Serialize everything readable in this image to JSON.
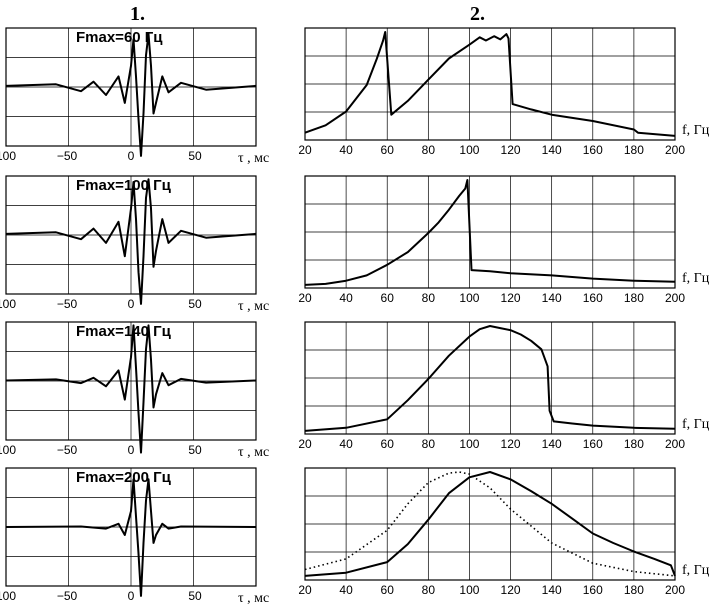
{
  "header": {
    "col1": "1.",
    "col2": "2."
  },
  "left_unit_label": "τ , мс",
  "right_unit_label": "f, Гц",
  "chart_data": [
    {
      "type": "line",
      "panel": "left",
      "title": "Fmax=60 Гц",
      "xlabel": "τ , мс",
      "xlim": [
        -100,
        100
      ],
      "xticks": [
        "100",
        "−50",
        "0",
        "50"
      ],
      "series": [
        {
          "x": [
            -100,
            -60,
            -40,
            -30,
            -20,
            -10,
            -5,
            0,
            2,
            4,
            6,
            8,
            10,
            12,
            14,
            16,
            18,
            20,
            25,
            30,
            40,
            60,
            100
          ],
          "y": [
            0.02,
            0.05,
            -0.08,
            0.1,
            -0.15,
            0.2,
            -0.3,
            0.4,
            0.9,
            0.2,
            -0.6,
            -1.3,
            -0.5,
            0.6,
            1.0,
            0.4,
            -0.5,
            -0.3,
            0.2,
            -0.1,
            0.08,
            -0.05,
            0.02
          ]
        }
      ]
    },
    {
      "type": "line",
      "panel": "right",
      "xlabel": "f, Гц",
      "xlim": [
        20,
        200
      ],
      "xticks": [
        "20",
        "40",
        "60",
        "80",
        "100",
        "120",
        "140",
        "160",
        "180",
        "200"
      ],
      "series": [
        {
          "x": [
            20,
            30,
            40,
            50,
            55,
            58,
            59,
            62,
            70,
            80,
            90,
            100,
            105,
            108,
            112,
            115,
            118,
            119,
            121,
            130,
            140,
            160,
            180,
            182,
            200
          ],
          "y": [
            0.05,
            0.12,
            0.25,
            0.5,
            0.75,
            0.92,
            1.0,
            0.22,
            0.35,
            0.55,
            0.75,
            0.88,
            0.95,
            0.92,
            0.96,
            0.93,
            0.98,
            0.94,
            0.32,
            0.27,
            0.22,
            0.16,
            0.08,
            0.05,
            0.02
          ]
        }
      ]
    },
    {
      "type": "line",
      "panel": "left",
      "title": "Fmax=100 Гц",
      "xlabel": "τ , мс",
      "xlim": [
        -100,
        100
      ],
      "xticks": [
        "100",
        "−50",
        "0",
        "50"
      ],
      "series": [
        {
          "x": [
            -100,
            -60,
            -40,
            -30,
            -20,
            -10,
            -5,
            0,
            2,
            4,
            6,
            8,
            10,
            12,
            14,
            16,
            18,
            20,
            25,
            30,
            40,
            60,
            100
          ],
          "y": [
            0.02,
            0.05,
            -0.08,
            0.12,
            -0.15,
            0.25,
            -0.4,
            0.5,
            1.0,
            0.3,
            -0.7,
            -1.3,
            -0.4,
            0.7,
            1.05,
            0.5,
            -0.6,
            -0.3,
            0.3,
            -0.15,
            0.08,
            -0.05,
            0.02
          ]
        }
      ]
    },
    {
      "type": "line",
      "panel": "right",
      "xlabel": "f, Гц",
      "xlim": [
        20,
        200
      ],
      "xticks": [
        "20",
        "40",
        "60",
        "80",
        "100",
        "120",
        "140",
        "160",
        "180",
        "200"
      ],
      "series": [
        {
          "x": [
            20,
            30,
            40,
            50,
            60,
            70,
            80,
            85,
            90,
            95,
            98,
            99,
            101,
            110,
            120,
            140,
            160,
            180,
            200
          ],
          "y": [
            0.01,
            0.02,
            0.05,
            0.1,
            0.2,
            0.32,
            0.5,
            0.6,
            0.72,
            0.85,
            0.92,
            1.0,
            0.15,
            0.14,
            0.12,
            0.1,
            0.07,
            0.05,
            0.04
          ]
        }
      ]
    },
    {
      "type": "line",
      "panel": "left",
      "title": "Fmax=140 Гц",
      "xlabel": "τ , мс",
      "xlim": [
        -100,
        100
      ],
      "xticks": [
        "100",
        "−50",
        "0",
        "50"
      ],
      "series": [
        {
          "x": [
            -100,
            -60,
            -40,
            -30,
            -20,
            -10,
            -5,
            0,
            2,
            4,
            6,
            8,
            10,
            12,
            14,
            16,
            18,
            20,
            25,
            30,
            40,
            60,
            100
          ],
          "y": [
            0.01,
            0.03,
            -0.04,
            0.06,
            -0.1,
            0.2,
            -0.35,
            0.45,
            1.05,
            0.25,
            -0.6,
            -1.35,
            -0.4,
            0.6,
            1.05,
            0.4,
            -0.5,
            -0.25,
            0.15,
            -0.08,
            0.04,
            -0.03,
            0.01
          ]
        }
      ]
    },
    {
      "type": "line",
      "panel": "right",
      "xlabel": "f, Гц",
      "xlim": [
        20,
        200
      ],
      "xticks": [
        "20",
        "40",
        "60",
        "80",
        "100",
        "120",
        "140",
        "160",
        "180",
        "200"
      ],
      "series": [
        {
          "x": [
            20,
            40,
            60,
            70,
            80,
            90,
            100,
            105,
            110,
            115,
            120,
            125,
            130,
            135,
            138,
            139,
            141,
            150,
            160,
            180,
            200
          ],
          "y": [
            0.01,
            0.04,
            0.12,
            0.3,
            0.5,
            0.72,
            0.9,
            0.97,
            1.0,
            0.98,
            0.96,
            0.92,
            0.86,
            0.78,
            0.62,
            0.2,
            0.1,
            0.08,
            0.06,
            0.04,
            0.03
          ]
        }
      ]
    },
    {
      "type": "line",
      "panel": "left",
      "title": "Fmax=200 Гц",
      "xlabel": "τ , мс",
      "xlim": [
        -100,
        100
      ],
      "xticks": [
        "100",
        "−50",
        "0",
        "50"
      ],
      "series": [
        {
          "x": [
            -100,
            -40,
            -20,
            -10,
            -5,
            0,
            2,
            4,
            6,
            8,
            10,
            12,
            14,
            16,
            18,
            20,
            25,
            30,
            40,
            100
          ],
          "y": [
            0.0,
            0.01,
            -0.03,
            0.06,
            -0.15,
            0.3,
            0.9,
            0.2,
            -0.5,
            -1.3,
            -0.3,
            0.5,
            0.9,
            0.3,
            -0.3,
            -0.15,
            0.06,
            -0.03,
            0.01,
            0.0
          ]
        }
      ]
    },
    {
      "type": "line",
      "panel": "right",
      "xlabel": "f, Гц",
      "xlim": [
        20,
        200
      ],
      "xticks": [
        "20",
        "40",
        "60",
        "80",
        "100",
        "120",
        "140",
        "160",
        "180",
        "200"
      ],
      "series": [
        {
          "x": [
            20,
            40,
            60,
            70,
            80,
            90,
            100,
            110,
            120,
            130,
            140,
            150,
            160,
            170,
            180,
            190,
            198,
            200
          ],
          "y": [
            0.02,
            0.05,
            0.15,
            0.32,
            0.55,
            0.8,
            0.95,
            1.0,
            0.93,
            0.82,
            0.7,
            0.56,
            0.42,
            0.33,
            0.25,
            0.18,
            0.12,
            0.02
          ]
        },
        {
          "x": [
            20,
            40,
            60,
            70,
            80,
            90,
            95,
            100,
            110,
            120,
            140,
            160,
            180,
            200
          ],
          "y": [
            0.08,
            0.18,
            0.45,
            0.7,
            0.9,
            0.99,
            1.0,
            0.98,
            0.85,
            0.65,
            0.33,
            0.14,
            0.06,
            0.02
          ]
        }
      ]
    }
  ]
}
